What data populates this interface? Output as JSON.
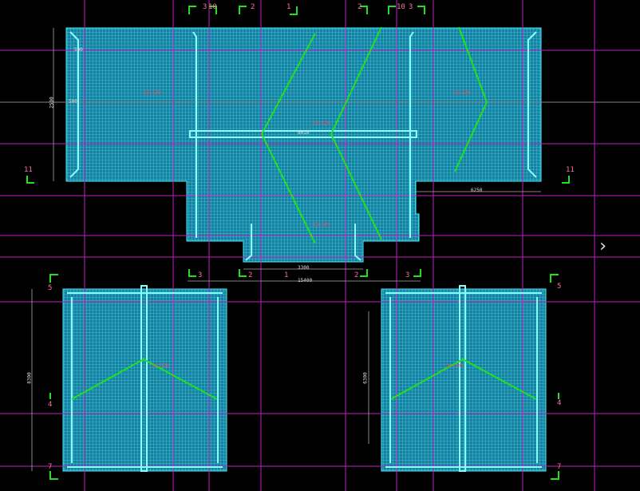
{
  "colors": {
    "background": "#000000",
    "fill": "#1a8fb0",
    "hatch": "#2ed4e6",
    "grid": "#c020c0",
    "ridge": "#20e020",
    "marker": "#20e020",
    "label": "#ff6fa0"
  },
  "section_markers": {
    "top": [
      "3",
      "10",
      "2",
      "1",
      "2",
      "10",
      "3"
    ],
    "mid_left": "11",
    "mid_right": "11",
    "bottom_row": [
      "3",
      "2",
      "1",
      "2",
      "3"
    ],
    "lower_left": [
      "5",
      "4",
      "7"
    ],
    "lower_right": [
      "5",
      "4",
      "7"
    ]
  },
  "dimensions": {
    "top_left_height": "2500",
    "top_left_a": "500",
    "top_left_b": "500",
    "right_width": "6250",
    "inner_width": "3300",
    "overall_width": "15400",
    "lower_left_height": "8300",
    "lower_right_height": "6300",
    "beam": "8010"
  },
  "elevations": [
    "16.520",
    "16.520",
    "16.520",
    "16.520",
    "16.520",
    "16.520"
  ],
  "nav": {
    "next_icon": "chevron-right-icon",
    "next_label": "›"
  }
}
